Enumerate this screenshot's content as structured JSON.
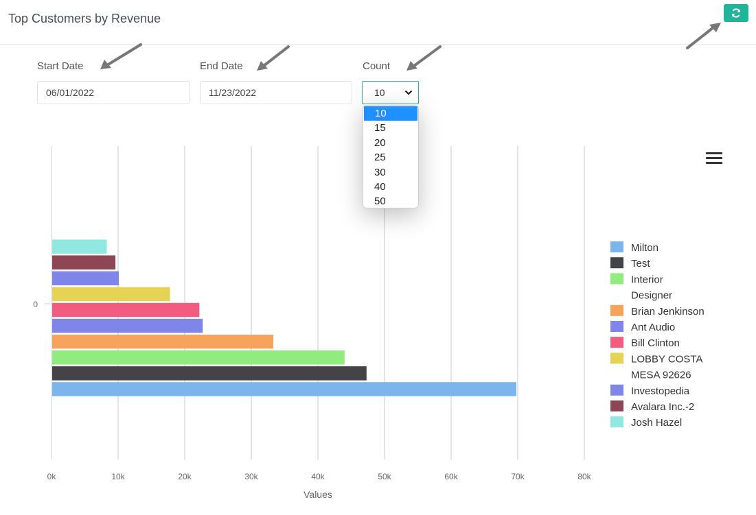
{
  "header": {
    "title": "Top Customers by Revenue",
    "refresh_icon": "refresh-icon"
  },
  "filters": {
    "start_date_label": "Start Date",
    "start_date_value": "06/01/2022",
    "end_date_label": "End Date",
    "end_date_value": "11/23/2022",
    "count_label": "Count",
    "count_value": "10",
    "count_options": [
      "10",
      "15",
      "20",
      "25",
      "30",
      "40",
      "50"
    ]
  },
  "colors": {
    "accent": "#1fb59a",
    "selected_option": "#1e90ff"
  },
  "chart_data": {
    "type": "bar",
    "orientation": "horizontal",
    "categories": [
      "0"
    ],
    "xlabel": "Values",
    "ylabel": "",
    "xlim": [
      0,
      80000
    ],
    "x_ticks": [
      "0k",
      "10k",
      "20k",
      "30k",
      "40k",
      "50k",
      "60k",
      "70k",
      "80k"
    ],
    "grid": true,
    "legend_position": "right",
    "series": [
      {
        "name": "Milton",
        "values": [
          69800
        ],
        "color": "#7cb5ec"
      },
      {
        "name": "Test",
        "values": [
          47300
        ],
        "color": "#434348"
      },
      {
        "name": "Interior Designer",
        "values": [
          44000
        ],
        "color": "#90ed7d"
      },
      {
        "name": "Brian Jenkinson",
        "values": [
          33300
        ],
        "color": "#f7a35c"
      },
      {
        "name": "Ant Audio",
        "values": [
          22700
        ],
        "color": "#8085e9"
      },
      {
        "name": "Bill Clinton",
        "values": [
          22200
        ],
        "color": "#f15c80"
      },
      {
        "name": "LOBBY COSTA MESA 92626",
        "values": [
          17800
        ],
        "color": "#e4d354"
      },
      {
        "name": "Investopedia",
        "values": [
          10100
        ],
        "color": "#8085e8"
      },
      {
        "name": "Avalara Inc.-2",
        "values": [
          9600
        ],
        "color": "#8d4653"
      },
      {
        "name": "Josh Hazel",
        "values": [
          8300
        ],
        "color": "#91e8e1"
      }
    ]
  }
}
